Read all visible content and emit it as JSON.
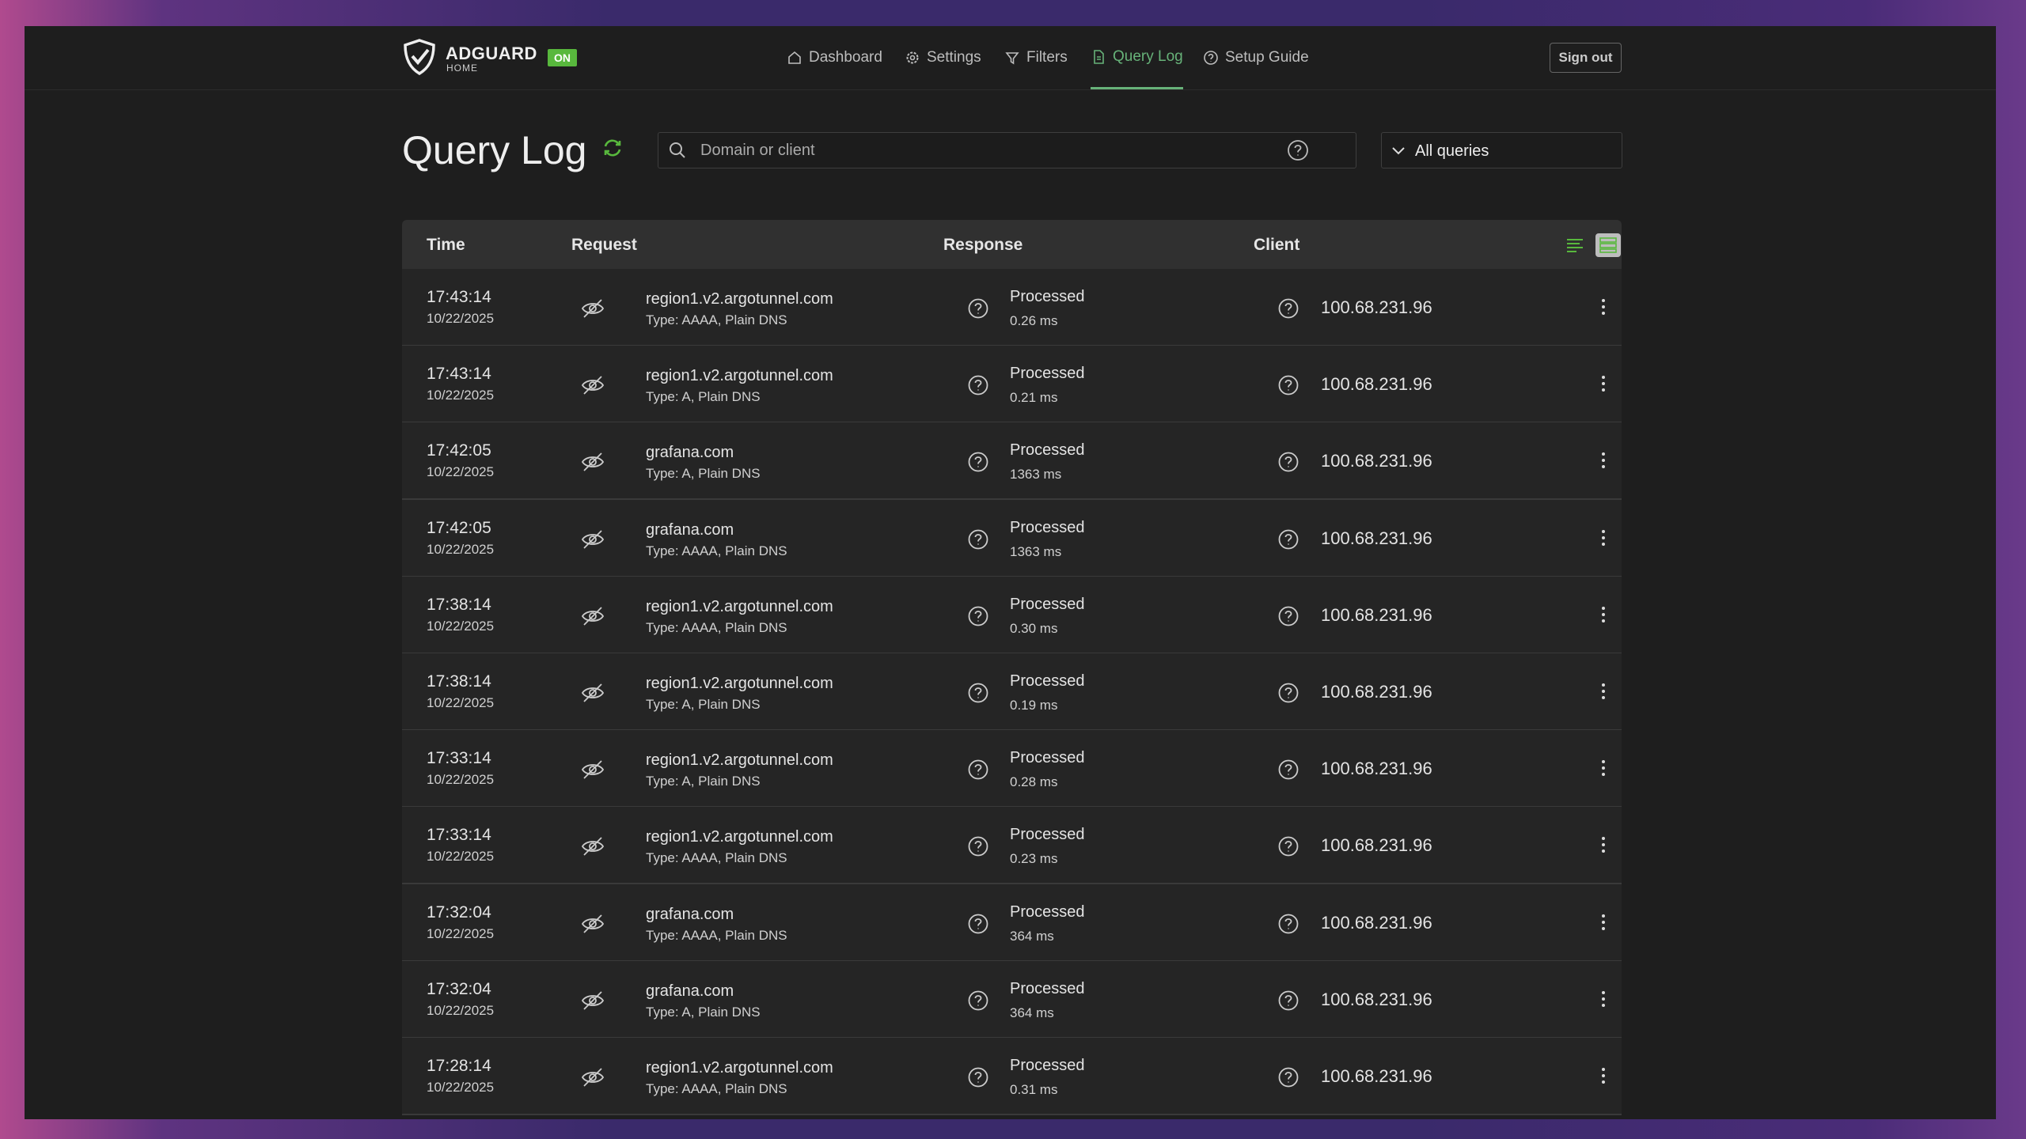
{
  "header": {
    "logo": "ADGUARD",
    "logo_sub": "HOME",
    "status": "ON",
    "nav": [
      "Dashboard",
      "Settings",
      "Filters",
      "Query Log",
      "Setup Guide"
    ],
    "sign_out": "Sign out"
  },
  "page": {
    "title": "Query Log",
    "search_placeholder": "Domain or client",
    "filter": "All queries"
  },
  "table": {
    "columns": [
      "Time",
      "Request",
      "Response",
      "Client"
    ],
    "rows": [
      {
        "time": "17:43:14",
        "date": "10/22/2025",
        "domain": "region1.v2.argotunnel.com",
        "type": "Type: AAAA, Plain DNS",
        "status": "Processed",
        "elapsed": "0.26 ms",
        "client": "100.68.231.96"
      },
      {
        "time": "17:43:14",
        "date": "10/22/2025",
        "domain": "region1.v2.argotunnel.com",
        "type": "Type: A, Plain DNS",
        "status": "Processed",
        "elapsed": "0.21 ms",
        "client": "100.68.231.96"
      },
      {
        "time": "17:42:05",
        "date": "10/22/2025",
        "domain": "grafana.com",
        "type": "Type: A, Plain DNS",
        "status": "Processed",
        "elapsed": "1363 ms",
        "client": "100.68.231.96"
      },
      {
        "time": "17:42:05",
        "date": "10/22/2025",
        "domain": "grafana.com",
        "type": "Type: AAAA, Plain DNS",
        "status": "Processed",
        "elapsed": "1363 ms",
        "client": "100.68.231.96"
      },
      {
        "time": "17:38:14",
        "date": "10/22/2025",
        "domain": "region1.v2.argotunnel.com",
        "type": "Type: AAAA, Plain DNS",
        "status": "Processed",
        "elapsed": "0.30 ms",
        "client": "100.68.231.96"
      },
      {
        "time": "17:38:14",
        "date": "10/22/2025",
        "domain": "region1.v2.argotunnel.com",
        "type": "Type: A, Plain DNS",
        "status": "Processed",
        "elapsed": "0.19 ms",
        "client": "100.68.231.96"
      },
      {
        "time": "17:33:14",
        "date": "10/22/2025",
        "domain": "region1.v2.argotunnel.com",
        "type": "Type: A, Plain DNS",
        "status": "Processed",
        "elapsed": "0.28 ms",
        "client": "100.68.231.96"
      },
      {
        "time": "17:33:14",
        "date": "10/22/2025",
        "domain": "region1.v2.argotunnel.com",
        "type": "Type: AAAA, Plain DNS",
        "status": "Processed",
        "elapsed": "0.23 ms",
        "client": "100.68.231.96"
      },
      {
        "time": "17:32:04",
        "date": "10/22/2025",
        "domain": "grafana.com",
        "type": "Type: AAAA, Plain DNS",
        "status": "Processed",
        "elapsed": "364 ms",
        "client": "100.68.231.96"
      },
      {
        "time": "17:32:04",
        "date": "10/22/2025",
        "domain": "grafana.com",
        "type": "Type: A, Plain DNS",
        "status": "Processed",
        "elapsed": "364 ms",
        "client": "100.68.231.96"
      },
      {
        "time": "17:28:14",
        "date": "10/22/2025",
        "domain": "region1.v2.argotunnel.com",
        "type": "Type: AAAA, Plain DNS",
        "status": "Processed",
        "elapsed": "0.31 ms",
        "client": "100.68.231.96"
      }
    ]
  }
}
